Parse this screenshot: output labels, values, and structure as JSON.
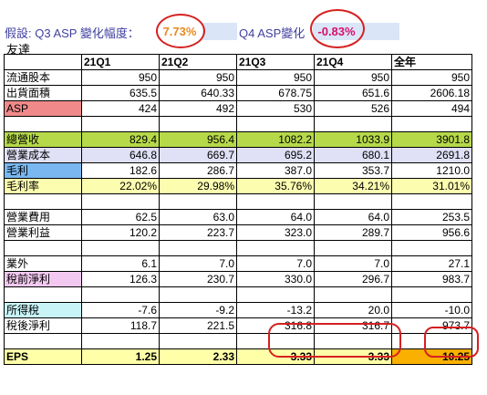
{
  "assumption": {
    "q3_label": "假設: Q3 ASP 變化幅度：",
    "q3_value": "7.73%",
    "q4_label": "Q4 ASP變化",
    "q4_value": "-0.83%"
  },
  "company": "友達",
  "table": {
    "headers": [
      "",
      "21Q1",
      "21Q2",
      "21Q3",
      "21Q4",
      "全年"
    ],
    "rows": [
      {
        "label": "流通股本",
        "values": [
          "950",
          "950",
          "950",
          "950",
          "950"
        ]
      },
      {
        "label": "出貨面積",
        "values": [
          "635.5",
          "640.33",
          "678.75",
          "651.6",
          "2606.18"
        ]
      },
      {
        "label": "ASP",
        "values": [
          "424",
          "492",
          "530",
          "526",
          "494"
        ]
      },
      {
        "label": "總營收",
        "values": [
          "829.4",
          "956.4",
          "1082.2",
          "1033.9",
          "3901.8"
        ]
      },
      {
        "label": "營業成本",
        "values": [
          "646.8",
          "669.7",
          "695.2",
          "680.1",
          "2691.8"
        ]
      },
      {
        "label": "毛利",
        "values": [
          "182.6",
          "286.7",
          "387.0",
          "353.7",
          "1210.0"
        ]
      },
      {
        "label": "毛利率",
        "values": [
          "22.02%",
          "29.98%",
          "35.76%",
          "34.21%",
          "31.01%"
        ]
      },
      {
        "label": "營業費用",
        "values": [
          "62.5",
          "63.0",
          "64.0",
          "64.0",
          "253.5"
        ]
      },
      {
        "label": "營業利益",
        "values": [
          "120.2",
          "223.7",
          "323.0",
          "289.7",
          "956.6"
        ]
      },
      {
        "label": "業外",
        "values": [
          "6.1",
          "7.0",
          "7.0",
          "7.0",
          "27.1"
        ]
      },
      {
        "label": "稅前淨利",
        "values": [
          "126.3",
          "230.7",
          "330.0",
          "296.7",
          "983.7"
        ]
      },
      {
        "label": "所得稅",
        "values": [
          "-7.6",
          "-9.2",
          "-13.2",
          "20.0",
          "-10.0"
        ]
      },
      {
        "label": "稅後淨利",
        "values": [
          "118.7",
          "221.5",
          "316.8",
          "316.7",
          "973.7"
        ]
      },
      {
        "label": "EPS",
        "values": [
          "1.25",
          "2.33",
          "3.33",
          "3.33",
          "10.25"
        ]
      }
    ]
  },
  "colors": {
    "accent_orange": "#e58a1f",
    "accent_magenta": "#d8106e",
    "annotation_red": "#d62020"
  }
}
